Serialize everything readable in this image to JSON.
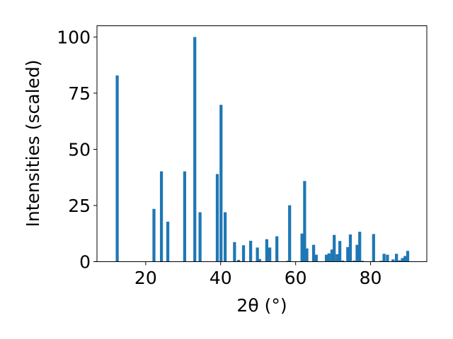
{
  "chart_data": {
    "type": "bar",
    "xlabel": "2θ (°)",
    "ylabel": "Intensities (scaled)",
    "xlim": [
      7,
      95
    ],
    "ylim": [
      0,
      105
    ],
    "xticks": [
      20,
      40,
      60,
      80
    ],
    "yticks": [
      0,
      25,
      50,
      75,
      100
    ],
    "bar_width": 0.8,
    "bar_color": "#1f77b4",
    "grid": false,
    "x": [
      12.4,
      22.2,
      24.2,
      25.9,
      30.4,
      33.1,
      34.5,
      39.1,
      40.1,
      41.2,
      43.7,
      44.8,
      46.1,
      48.0,
      49.8,
      50.4,
      52.3,
      53.1,
      55.0,
      57.9,
      58.4,
      61.7,
      62.4,
      63.0,
      64.8,
      65.5,
      68.2,
      68.9,
      69.7,
      70.3,
      71.1,
      71.8,
      72.6,
      73.9,
      74.6,
      75.6,
      76.4,
      77.1,
      77.8,
      80.8,
      82.8,
      83.6,
      84.5,
      86.0,
      86.9,
      87.7,
      88.5,
      89.2,
      89.9
    ],
    "values": [
      82.9,
      23.5,
      40.2,
      17.8,
      40.2,
      100.0,
      22.0,
      39.0,
      69.8,
      22.0,
      8.7,
      0.8,
      7.3,
      9.3,
      6.3,
      1.2,
      10.0,
      6.3,
      11.3,
      0.4,
      25.1,
      12.5,
      35.9,
      5.9,
      7.5,
      3.1,
      3.1,
      3.7,
      5.4,
      11.9,
      3.3,
      9.2,
      0.5,
      6.5,
      12.1,
      0.5,
      7.5,
      13.3,
      0.4,
      12.3,
      0.4,
      3.5,
      3.1,
      1.0,
      3.5,
      0.6,
      1.6,
      2.5,
      4.8
    ]
  }
}
